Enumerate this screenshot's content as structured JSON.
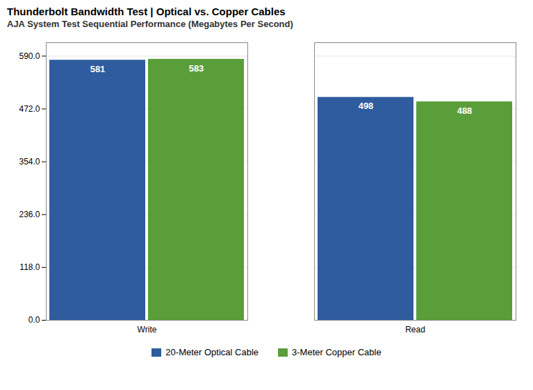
{
  "chart_data": {
    "type": "bar",
    "title": "Thunderbolt Bandwidth Test | Optical vs. Copper Cables",
    "subtitle": "AJA System Test Sequential Performance (Megabytes Per Second)",
    "categories": [
      "Write",
      "Read"
    ],
    "series": [
      {
        "name": "20-Meter Optical Cable",
        "color": "#2e5c9e",
        "values": [
          581,
          498
        ]
      },
      {
        "name": "3-Meter Copper Cable",
        "color": "#5a9e3a",
        "values": [
          583,
          488
        ]
      }
    ],
    "ylim": [
      0,
      620
    ],
    "yticks": [
      {
        "value": 0,
        "label": "0.0"
      },
      {
        "value": 118,
        "label": "118.0"
      },
      {
        "value": 236,
        "label": "236.0"
      },
      {
        "value": 354,
        "label": "354.0"
      },
      {
        "value": 472,
        "label": "472.0"
      },
      {
        "value": 590,
        "label": "590.0"
      }
    ],
    "grid": true,
    "legend": "bottom",
    "data_labels": true
  }
}
